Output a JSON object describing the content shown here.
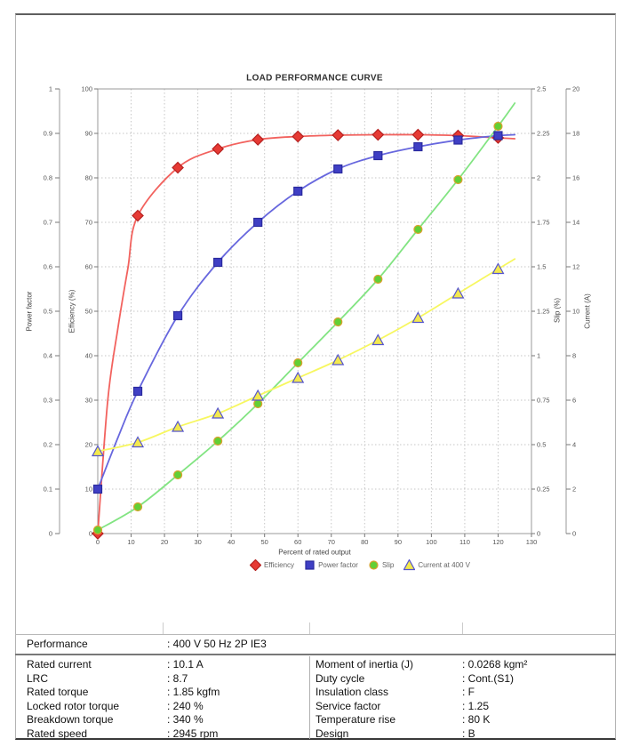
{
  "chart_data": {
    "type": "line",
    "title": "LOAD PERFORMANCE CURVE",
    "xlabel": "Percent of rated output",
    "x_axis": {
      "range": [
        0,
        130
      ],
      "tick_step": 10
    },
    "x": [
      0,
      12,
      24,
      36,
      48,
      60,
      72,
      84,
      96,
      108,
      120
    ],
    "curve_extend_x": 125,
    "grid": true,
    "legend_position": "bottom",
    "axes": {
      "power_factor": {
        "label": "Power factor",
        "range": [
          0,
          1
        ],
        "tick_step": 0.1
      },
      "efficiency": {
        "label": "Efficiency (%)",
        "range": [
          0,
          100
        ],
        "tick_step": 10
      },
      "slip": {
        "label": "Slip (%)",
        "range": [
          0,
          2.5
        ],
        "tick_step": 0.25
      },
      "current": {
        "label": "Current (A)",
        "range": [
          0,
          20
        ],
        "tick_step": 2
      }
    },
    "series": [
      {
        "name": "Efficiency",
        "axis": "efficiency",
        "marker": "diamond",
        "line_color": "#f2625e",
        "marker_fill": "#e63a34",
        "marker_stroke": "#b5201f",
        "values": [
          0,
          71.5,
          82.3,
          86.5,
          88.6,
          89.3,
          89.6,
          89.7,
          89.7,
          89.5,
          89.0
        ],
        "end_value": 88.8,
        "curve_hints": [
          [
            3,
            30
          ],
          [
            6,
            46
          ],
          [
            9,
            59.5
          ]
        ]
      },
      {
        "name": "Power factor",
        "axis": "power_factor",
        "marker": "square",
        "line_color": "#6767de",
        "marker_fill": "#3f3fc4",
        "marker_stroke": "#2a2a9e",
        "values": [
          0.1,
          0.32,
          0.49,
          0.61,
          0.7,
          0.77,
          0.82,
          0.85,
          0.87,
          0.885,
          0.895
        ],
        "end_value": 0.897,
        "curve_hints": [
          [
            6,
            0.215
          ]
        ]
      },
      {
        "name": "Slip",
        "axis": "slip",
        "marker": "circle",
        "line_color": "#82e482",
        "marker_fill": "#62cf35",
        "marker_stroke": "#dca12e",
        "values": [
          0.02,
          0.15,
          0.33,
          0.52,
          0.73,
          0.96,
          1.19,
          1.43,
          1.71,
          1.99,
          2.29
        ],
        "end_value": 2.42,
        "curve_hints": []
      },
      {
        "name": "Current at 400 V",
        "axis": "current",
        "marker": "triangle",
        "line_color": "#f7f760",
        "marker_fill": "#f3e94e",
        "marker_stroke": "#5555cc",
        "values": [
          3.7,
          4.1,
          4.8,
          5.4,
          6.2,
          7.0,
          7.8,
          8.7,
          9.7,
          10.8,
          11.9
        ],
        "end_value": 12.35,
        "curve_hints": []
      }
    ]
  },
  "table": {
    "performance_label": "Performance",
    "performance_value": ": 400 V 50 Hz 2P IE3",
    "left_rows": [
      {
        "label": "Rated current",
        "value": ": 10.1 A"
      },
      {
        "label": "LRC",
        "value": ": 8.7"
      },
      {
        "label": "Rated torque",
        "value": ": 1.85 kgfm"
      },
      {
        "label": "Locked rotor torque",
        "value": ": 240 %"
      },
      {
        "label": "Breakdown torque",
        "value": ": 340 %"
      },
      {
        "label": "Rated speed",
        "value": ": 2945 rpm"
      }
    ],
    "right_rows": [
      {
        "label": "Moment of inertia (J)",
        "value": ": 0.0268 kgm²"
      },
      {
        "label": "Duty cycle",
        "value": ": Cont.(S1)"
      },
      {
        "label": "Insulation class",
        "value": ": F"
      },
      {
        "label": "Service factor",
        "value": ": 1.25"
      },
      {
        "label": "Temperature rise",
        "value": ": 80 K"
      },
      {
        "label": "Design",
        "value": ": B"
      }
    ]
  }
}
